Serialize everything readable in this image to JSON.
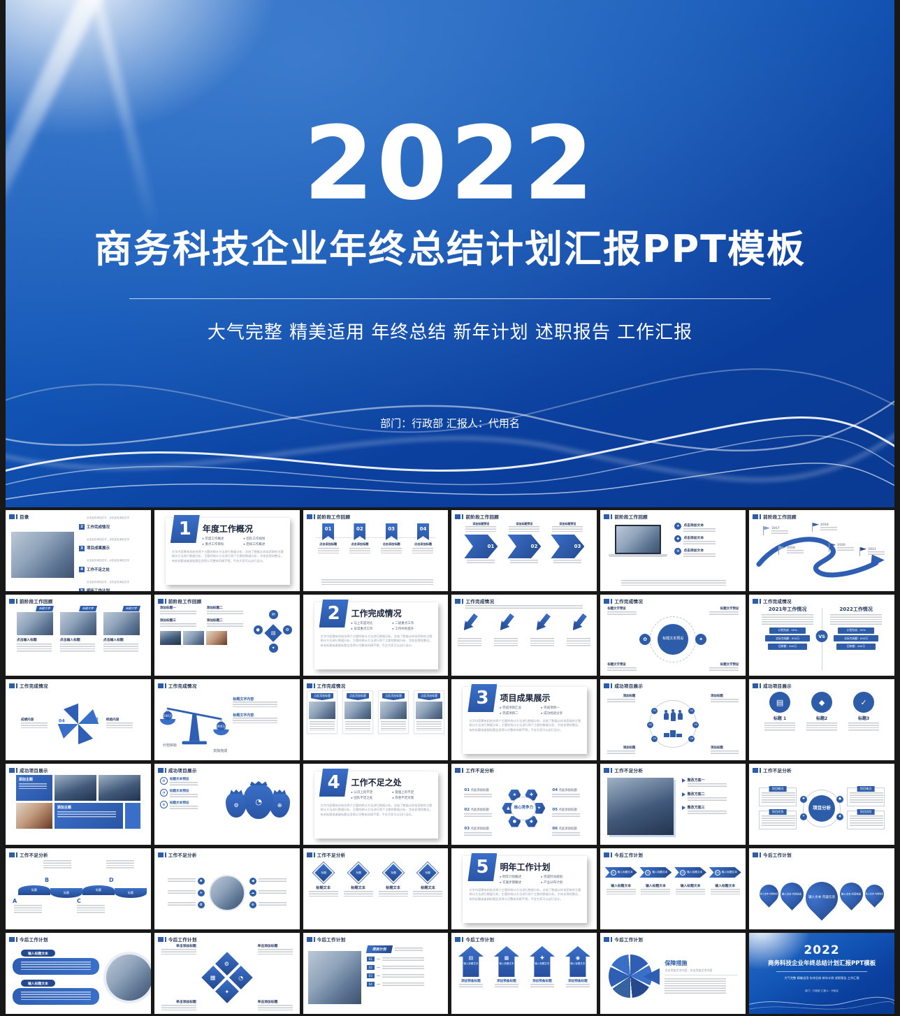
{
  "page": {
    "background": "#181818",
    "accent": "#2d5ca9",
    "accent2": "#3a6fc8",
    "deep": "#24498f",
    "slide_bg": "#ffffff",
    "title_color": "#20304f"
  },
  "hero": {
    "year": "2022",
    "title": "商务科技企业年终总结计划汇报PPT模板",
    "subtitle": "大气完整 精美适用 年终总结 新年计划 述职报告 工作汇报",
    "department_line": "部门：行政部 汇报人：代用名"
  },
  "fillers": {
    "para": "文字内容需有机结合两个主题的统计方法进行数据分析，总结了数据从样本获取的主题统计方法进行数据分析，主题的统计方法进行两个主题的数据分析，字体显得较整洁，有些标题或者副标题会显得公司整体风格不错，平台大家可以自行设计。",
    "small": "点击此处添加文字，点击此处添加文字"
  },
  "icons": {
    "star": "★",
    "diamond": "◆",
    "gear": "⚙",
    "clock": "◔",
    "globe": "⊕",
    "check": "✓",
    "doc": "▤",
    "close": "✖",
    "list": "≡",
    "flower": "✿",
    "left": "◀",
    "cloud": "☁",
    "plus": "✚",
    "chart": "▦",
    "camera": "◉",
    "bulb": "✦",
    "target": "◎",
    "dot": "●",
    "tri": "▲",
    "mail": "✉"
  },
  "grid": {
    "slides": [
      {
        "kind": "toc",
        "title": "目录",
        "items": [
          [
            "1",
            "年度工作概况"
          ],
          [
            "2",
            "工作完成情况"
          ],
          [
            "3",
            "项目成果展示"
          ],
          [
            "4",
            "工作不足之处"
          ],
          [
            "5",
            "明年工作计划"
          ]
        ]
      },
      {
        "kind": "divider",
        "num": "1",
        "title": "年度工作概况",
        "bullets": [
          "年度工作概述",
          "团队工作规划",
          "重点工作目标",
          "后续工作概述"
        ]
      },
      {
        "kind": "ribbons",
        "title": "前阶段工作回顾",
        "nums": [
          "01",
          "02",
          "03",
          "04"
        ],
        "label": "点击添加标题"
      },
      {
        "kind": "chevrons",
        "title": "前阶段工作回顾",
        "nums": [
          "01",
          "02",
          "03"
        ],
        "label": "添加标题预设"
      },
      {
        "kind": "laptop",
        "title": "前阶段工作回顾",
        "label": "点击添加文本",
        "icons": [
          "star",
          "diamond",
          "gear"
        ]
      },
      {
        "kind": "road",
        "title": "前阶段工作回顾",
        "years": [
          "2017",
          "2018",
          "2019",
          "2020",
          "2021"
        ]
      },
      {
        "kind": "photos3",
        "title": "前阶段工作回顾",
        "tag": "标题文字",
        "label": "点击输入标题"
      },
      {
        "kind": "blocks",
        "title": "前阶段工作回顾",
        "labels": [
          "添加标题一",
          "添加标题二",
          "添加标题三",
          "添加标题二"
        ],
        "cluster": [
          "doc",
          "mail",
          "gear",
          "bulb",
          "dot"
        ]
      },
      {
        "kind": "divider",
        "num": "2",
        "title": "工作完成情况",
        "bullets": [
          "与上年度对比",
          "二级重点工作",
          "日常重点工作",
          "工作中的提升"
        ]
      },
      {
        "kind": "arrowsdown",
        "title": "工作完成情况",
        "label": "添加标题"
      },
      {
        "kind": "bigcircle",
        "title": "工作完成情况",
        "center": "标题文本预设",
        "corner": "标题文字预设",
        "side_icons": [
          "flower",
          "bulb"
        ]
      },
      {
        "kind": "vs",
        "title": "工作完成情况",
        "left": "2021年工作情况",
        "right": "2022工作情况",
        "vs": "VS",
        "bars": [
          "计划完成：50%",
          "实际完成额：630万",
          "回款额：640万"
        ]
      },
      {
        "kind": "pinwheel",
        "title": "工作完成情况",
        "nums": [
          "01",
          "02",
          "03",
          "04"
        ],
        "labels": [
          "成绩内容",
          "经验内容"
        ]
      },
      {
        "kind": "balance",
        "title": "工作完成情况",
        "left": "计划目标",
        "right": "实际完成",
        "wl": "500万",
        "wr": "800万",
        "side": "标题文字内容"
      },
      {
        "kind": "photos4",
        "title": "工作完成情况",
        "tag": "点此添加标题"
      },
      {
        "kind": "divider",
        "num": "3",
        "title": "项目成果展示",
        "bullets": [
          "完成项目汇总",
          "完成项目一",
          "完成项目二",
          "成功经验分享"
        ]
      },
      {
        "kind": "peoplecircle",
        "title": "成功项目展示",
        "nums": [
          "01",
          "02",
          "03",
          "04",
          "05",
          "06"
        ],
        "label": "添加标题"
      },
      {
        "kind": "circles3",
        "title": "成功项目展示",
        "labels": [
          "标题 1",
          "标题2",
          "标题3"
        ],
        "icons": [
          "doc",
          "diamond",
          "check"
        ]
      },
      {
        "kind": "collage",
        "title": "成功项目展示",
        "label": "添加主题"
      },
      {
        "kind": "moneybags",
        "title": "成功项目展示",
        "label": "标题文本预设",
        "icons": [
          "gear",
          "clock",
          "globe"
        ]
      },
      {
        "kind": "divider",
        "num": "4",
        "title": "工作不足之处",
        "bullets": [
          "认识上的不足",
          "管理上的不足",
          "团队不足之处",
          "改善不足对策"
        ]
      },
      {
        "kind": "hexcore",
        "title": "工作不足分析",
        "center": "核心竞争力",
        "nums": [
          "01",
          "02",
          "03",
          "04",
          "05",
          "06"
        ],
        "label": "点此添加标题",
        "petals": [
          "bulb",
          "diamond",
          "dot",
          "tri",
          "star",
          "plus"
        ]
      },
      {
        "kind": "photoarrows",
        "title": "工作不足分析",
        "labels": [
          "整改方案一",
          "整改方案二",
          "整改方案三"
        ]
      },
      {
        "kind": "analysis",
        "title": "工作不足分析",
        "center": "项目分析",
        "tabs": [
          "项目概况",
          "项目难点",
          "项目优势",
          "项目风险"
        ],
        "mini": [
          "plus",
          "bulb",
          "dot",
          "diamond"
        ]
      },
      {
        "kind": "wave",
        "title": "工作不足分析",
        "letters": [
          "A",
          "B",
          "C",
          "D"
        ],
        "chip": "标题"
      },
      {
        "kind": "callouts",
        "title": "工作不足分析",
        "icons_left": [
          "close",
          "list",
          "flower"
        ],
        "icons_right": [
          "left",
          "cloud",
          "globe"
        ]
      },
      {
        "kind": "diamonds",
        "title": "工作不足分析",
        "chip": "标题",
        "label": "标题文本"
      },
      {
        "kind": "divider",
        "num": "5",
        "title": "明年工作计划",
        "bullets": [
          "明年计划概述",
          "完成时间规划",
          "实施步骤概述",
          "产业分布计划"
        ]
      },
      {
        "kind": "steps",
        "title": "今后工作计划",
        "label": "输入标题文本",
        "nums": [
          "01",
          "02",
          "03",
          "04"
        ]
      },
      {
        "kind": "pins",
        "title": "今后工作计划",
        "center": "输入文本\n内容信息",
        "side": "输入文本 内容信息"
      },
      {
        "kind": "pills",
        "title": "今后工作计划",
        "label": "输入标题文本"
      },
      {
        "kind": "dcluster",
        "title": "今后工作计划",
        "label": "单击添加标题",
        "tiles": [
          "gear",
          "clock",
          "chart",
          "bulb"
        ]
      },
      {
        "kind": "photolist",
        "title": "今后工作计划",
        "header": "项目计划",
        "nums": [
          "01",
          "02",
          "03",
          "04"
        ]
      },
      {
        "kind": "houses",
        "title": "今后工作计划",
        "label": "输入标题文本",
        "sub": "添加预备标题",
        "icons": [
          "doc",
          "chart",
          "plus",
          "camera"
        ]
      },
      {
        "kind": "pie",
        "title": "今后工作计划",
        "header": "保障措施",
        "sub": "点击添加文字内容，点击添加文字内容"
      },
      {
        "kind": "closing"
      }
    ]
  }
}
